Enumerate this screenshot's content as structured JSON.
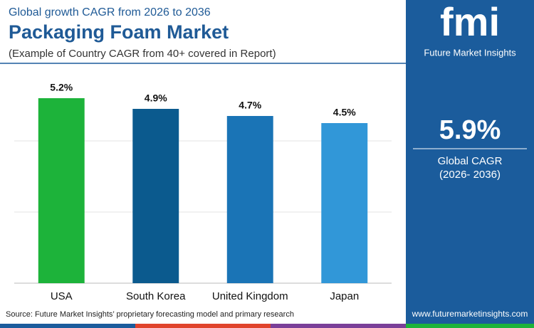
{
  "chart_data": {
    "type": "bar",
    "kicker": "Global growth CAGR from 2026 to 2036",
    "title": "Packaging Foam Market",
    "subtitle": "(Example of Country CAGR from 40+ covered in Report)",
    "categories": [
      "USA",
      "South Korea",
      "United Kingdom",
      "Japan"
    ],
    "values": [
      5.2,
      4.9,
      4.7,
      4.5
    ],
    "value_labels": [
      "5.2%",
      "4.9%",
      "4.7%",
      "4.5%"
    ],
    "colors": [
      "#1db33a",
      "#0b5a8e",
      "#1a74b6",
      "#3197d8"
    ],
    "ylim": [
      0,
      6
    ],
    "yticks": [
      2,
      4
    ],
    "grid": true
  },
  "source": "Source: Future Market Insights’ proprietary forecasting model and primary research",
  "panel": {
    "logo": "fmi",
    "brand": "Future Market Insights",
    "value": "5.9%",
    "label": "Global CAGR",
    "period": "(2026- 2036)",
    "url": "www.futuremarketinsights.com"
  }
}
